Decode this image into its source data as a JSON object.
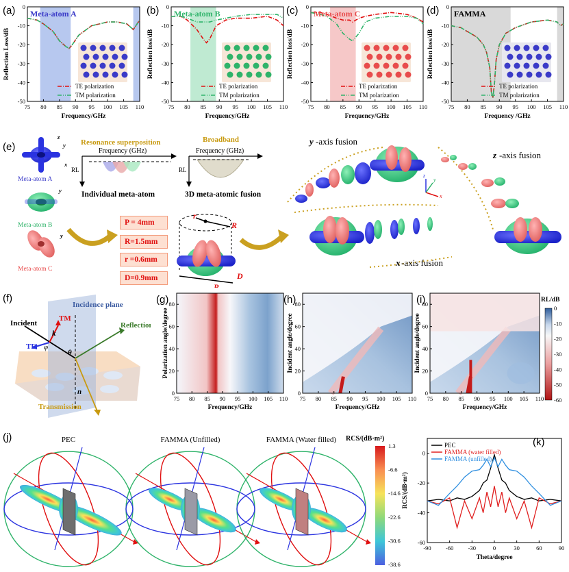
{
  "panels": {
    "a": {
      "label": "(a)",
      "title": "Meta-atom A",
      "title_color": "#3b3bc8"
    },
    "b": {
      "label": "(b)",
      "title": "Meta-atom B",
      "title_color": "#2fb36a"
    },
    "c": {
      "label": "(c)",
      "title": "Meta-atom C",
      "title_color": "#e84c4c"
    },
    "d": {
      "label": "(d)",
      "title": "FAMMA",
      "title_color": "#000000"
    }
  },
  "rl_axes": {
    "x_ticks": [
      "75",
      "80",
      "85",
      "90",
      "95",
      "100",
      "105",
      "110"
    ],
    "y_ticks": [
      "0",
      "-10",
      "-20",
      "-30",
      "-40",
      "-50"
    ],
    "ylabel_a": "Reflection Loss/dB",
    "ylabel_b": "Reflection loss/dB",
    "xlabel": "Frequency/GHz",
    "xlabel_d": "Frequency /GHz",
    "legend_te": "TE polarization",
    "legend_tm": "TM polarization"
  },
  "panel_e": {
    "label": "(e)",
    "meta_a": "Meta-atom A",
    "meta_b": "Meta-atom B",
    "meta_c": "Meta-atom C",
    "resonance": "Resonance superposition",
    "broadband": "Broadband",
    "freq": "Frequency (GHz)",
    "rl": "RL",
    "individual": "Individual meta-atom",
    "fusion": "3D meta-atomic fusion",
    "y_fusion_a": "y",
    "y_fusion_b": "-axis fusion",
    "z_fusion_a": "z",
    "z_fusion_b": "-axis fusion",
    "x_fusion_a": "x",
    "x_fusion_b": "-axis fusion",
    "P": "P =  4mm",
    "R": "R=1.5mm",
    "r": "r =0.6mm",
    "D": "D=0.9mm",
    "dim_r": "r",
    "dim_R": "R",
    "dim_P": "P",
    "dim_D": "D",
    "ax_x": "x",
    "ax_y": "y",
    "ax_z": "z"
  },
  "panel_f": {
    "label": "(f)",
    "incidence_plane": "Incidence plane",
    "incident": "Incident",
    "reflection": "Reflection",
    "transmission": "Transmission",
    "tm": "TM",
    "te": "TE",
    "k": "k",
    "phi": "φ",
    "theta": "θ",
    "n": "n"
  },
  "maps": {
    "g": {
      "label": "(g)",
      "ylabel": "Polarization angle/degree",
      "xlabel": "Frequency/GHz"
    },
    "h": {
      "label": "(h)",
      "ylabel": "Incident angle/degree",
      "xlabel": "Frequency/GHz"
    },
    "i": {
      "label": "(i)",
      "ylabel": "Incident angle/degree",
      "xlabel": "Frequency/GHz"
    },
    "x_ticks": [
      "75",
      "80",
      "85",
      "90",
      "95",
      "100",
      "105",
      "110"
    ],
    "y_ticks": [
      "80",
      "60",
      "40",
      "20",
      "0"
    ],
    "cbar_title": "RL/dB",
    "cbar_ticks": [
      "0",
      "-10",
      "-20",
      "-30",
      "-40",
      "-50",
      "-60"
    ]
  },
  "panel_j": {
    "label": "(j)",
    "pec": "PEC",
    "unfilled": "FAMMA (Unfilled)",
    "water": "FAMMA (Water filled)",
    "cbar_title": "RCS/(dB·m²)",
    "cbar_ticks": [
      "1.3",
      "-6.6",
      "-14.6",
      "-22.6",
      "-30.6",
      "-38.6"
    ]
  },
  "chart_data": [
    {
      "panel": "a",
      "type": "line",
      "x": [
        75,
        78,
        80,
        83,
        85,
        87,
        88,
        89,
        91,
        95,
        100,
        103,
        106,
        108,
        110
      ],
      "series": [
        {
          "name": "TE polarization",
          "values": [
            -6,
            -7,
            -9,
            -13,
            -18,
            -21,
            -22,
            -20,
            -15,
            -10,
            -8,
            -8,
            -9,
            -12,
            -7
          ]
        },
        {
          "name": "TM polarization",
          "values": [
            -6,
            -7,
            -9,
            -13,
            -18,
            -21,
            -22,
            -20,
            -15,
            -10,
            -8,
            -8,
            -9,
            -12,
            -7
          ]
        }
      ],
      "xlabel": "Frequency/GHz",
      "ylabel": "Reflection Loss/dB",
      "xlim": [
        75,
        110
      ],
      "ylim": [
        -50,
        0
      ],
      "highlight": [
        [
          79,
          88.5
        ],
        [
          108,
          110
        ]
      ]
    },
    {
      "panel": "b",
      "type": "line",
      "x": [
        75,
        78,
        80,
        83,
        85,
        86,
        87,
        89,
        92,
        95,
        100,
        105,
        108,
        110
      ],
      "series": [
        {
          "name": "TE polarization",
          "values": [
            -5,
            -5,
            -7,
            -12,
            -17,
            -19,
            -17,
            -10,
            -7,
            -6,
            -6,
            -5,
            -7,
            -10
          ]
        },
        {
          "name": "TM polarization",
          "values": [
            -5,
            -5,
            -6,
            -8,
            -8,
            -8,
            -8,
            -7,
            -6,
            -5,
            -4,
            -4,
            -4,
            -6
          ]
        }
      ],
      "xlabel": "Frequency/GHz",
      "ylabel": "Reflection loss/dB",
      "xlim": [
        75,
        110
      ],
      "ylim": [
        -50,
        0
      ],
      "highlight": [
        [
          81,
          89
        ]
      ]
    },
    {
      "panel": "c",
      "type": "line",
      "x": [
        75,
        78,
        80,
        83,
        85,
        87,
        88,
        90,
        92,
        95,
        100,
        105,
        108,
        110
      ],
      "series": [
        {
          "name": "TE polarization",
          "values": [
            -3,
            -3,
            -4,
            -6,
            -7,
            -7,
            -8,
            -6,
            -5,
            -4,
            -3,
            -4,
            -6,
            -8
          ]
        },
        {
          "name": "TM polarization",
          "values": [
            -3,
            -4,
            -5,
            -9,
            -14,
            -17,
            -18,
            -14,
            -8,
            -6,
            -5,
            -5,
            -6,
            -9
          ]
        }
      ],
      "xlabel": "Frequency/GHz",
      "ylabel": "Reflection loss/dB",
      "xlim": [
        75,
        110
      ],
      "ylim": [
        -50,
        0
      ],
      "highlight": [
        [
          81,
          89
        ]
      ]
    },
    {
      "panel": "d",
      "type": "line",
      "x": [
        75,
        78,
        80,
        83,
        85,
        86,
        87,
        87.5,
        88,
        88.5,
        89,
        90,
        92,
        95,
        100,
        105,
        108,
        109,
        110
      ],
      "series": [
        {
          "name": "TE polarization",
          "values": [
            -10,
            -11,
            -13,
            -16,
            -20,
            -24,
            -32,
            -45,
            -48,
            -40,
            -28,
            -20,
            -14,
            -11,
            -8,
            -7,
            -8,
            -10,
            -9
          ]
        },
        {
          "name": "TM polarization",
          "values": [
            -10,
            -11,
            -13,
            -16,
            -20,
            -24,
            -32,
            -45,
            -48,
            -40,
            -28,
            -20,
            -14,
            -11,
            -8,
            -7,
            -8,
            -10,
            -9
          ]
        }
      ],
      "xlabel": "Frequency /GHz",
      "ylabel": "Reflection loss/dB",
      "xlim": [
        75,
        110
      ],
      "ylim": [
        -50,
        0
      ],
      "highlight": [
        [
          75,
          93.5
        ],
        [
          108,
          110
        ]
      ]
    },
    {
      "panel": "k",
      "type": "line",
      "x": [
        -90,
        -75,
        -60,
        -50,
        -40,
        -30,
        -20,
        -15,
        -10,
        -5,
        0,
        5,
        10,
        15,
        20,
        30,
        40,
        50,
        60,
        75,
        90
      ],
      "series": [
        {
          "name": "PEC",
          "values": [
            -32,
            -31,
            -32,
            -30,
            -31,
            -29,
            -25,
            -20,
            -18,
            -10,
            -1,
            -10,
            -18,
            -20,
            -25,
            -29,
            -31,
            -30,
            -32,
            -31,
            -32
          ]
        },
        {
          "name": "FAMMA (water filled)",
          "values": [
            -32,
            -34,
            -30,
            -50,
            -32,
            -44,
            -30,
            -40,
            -26,
            -36,
            -22,
            -36,
            -26,
            -40,
            -30,
            -44,
            -32,
            -50,
            -30,
            -34,
            -32
          ]
        },
        {
          "name": "FAMMA (unfilled)",
          "values": [
            -32,
            -35,
            -27,
            -22,
            -16,
            -12,
            -11,
            -8,
            -4,
            -9,
            -3,
            -9,
            -4,
            -8,
            -11,
            -12,
            -16,
            -22,
            -27,
            -35,
            -32
          ]
        }
      ],
      "xlabel": "Theta/degree",
      "ylabel": "RCS/(dB·m²)",
      "xlim": [
        -90,
        90
      ],
      "ylim": [
        -60,
        10
      ],
      "x_ticks": [
        "-90",
        "-60",
        "-30",
        "0",
        "30",
        "60",
        "90"
      ],
      "y_ticks": [
        "0",
        "-20",
        "-40",
        "-60"
      ]
    }
  ],
  "panel_k": {
    "label": "(k)",
    "colors": {
      "PEC": "#000000",
      "water": "#e02020",
      "unfilled": "#2f8fe0"
    }
  }
}
